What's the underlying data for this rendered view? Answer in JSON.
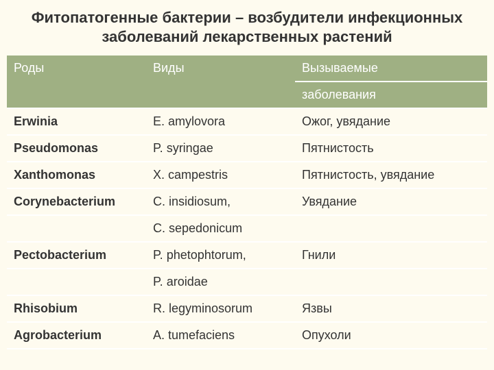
{
  "background_color": "#fefbef",
  "header_bg": "#9fb083",
  "header_fg": "#ffffff",
  "text_color": "#333333",
  "border_color": "#ffffff",
  "title_fontsize": 22,
  "cell_fontsize": 18,
  "title": "Фитопатогенные бактерии – возбудители инфекционных заболеваний лекарственных растений",
  "columns": {
    "col1": "Роды",
    "col2": "Виды",
    "col3_line1": "Вызываемые",
    "col3_line2": "заболевания"
  },
  "rows": {
    "r1": {
      "genus": "Erwinia",
      "species": "E. amylovora",
      "disease": "Ожог, увядание"
    },
    "r2": {
      "genus": "Pseudomonas",
      "species": "P. syringae",
      "disease": "Пятнистость"
    },
    "r3": {
      "genus": "Xanthomonas",
      "species": "X. campestris",
      "disease": "Пятнистость, увядание"
    },
    "r4": {
      "genus": "Corynebacterium",
      "species": "C. insidiosum,",
      "disease": "Увядание"
    },
    "r4b": {
      "genus": "",
      "species": "C. sepedonicum",
      "disease": ""
    },
    "r5": {
      "genus": "Pectobacterium",
      "species": "P. phetophtorum,",
      "disease": "Гнили"
    },
    "r5b": {
      "genus": "",
      "species": "P. aroidae",
      "disease": ""
    },
    "r6": {
      "genus": "Rhisobium",
      "species": "R. legyminosorum",
      "disease": "Язвы"
    },
    "r7": {
      "genus": "Agrobacterium",
      "species": "A. tumefaciens",
      "disease": "Опухоли"
    }
  }
}
